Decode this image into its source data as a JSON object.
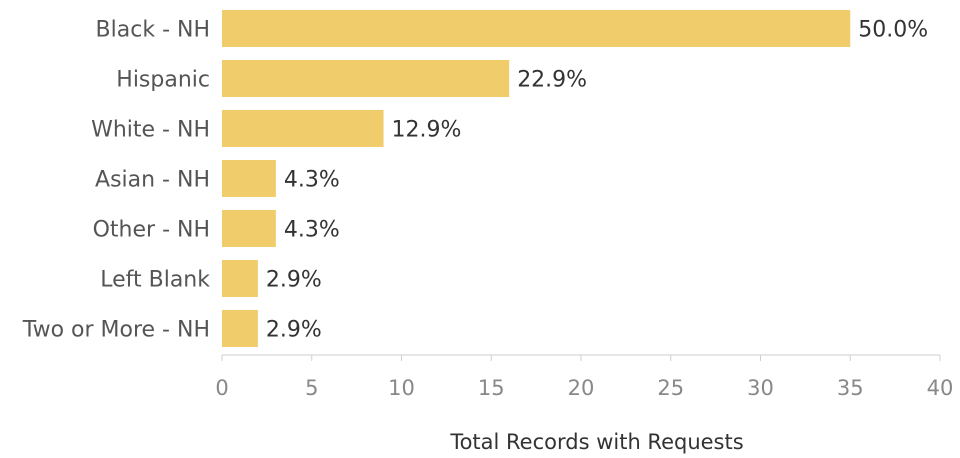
{
  "chart_data": {
    "type": "bar",
    "orientation": "horizontal",
    "categories": [
      "Black - NH",
      "Hispanic",
      "White - NH",
      "Asian - NH",
      "Other - NH",
      "Left Blank",
      "Two or More - NH"
    ],
    "values": [
      35,
      16,
      9,
      3,
      3,
      2,
      2
    ],
    "data_labels": [
      "50.0%",
      "22.9%",
      "12.9%",
      "4.3%",
      "4.3%",
      "2.9%",
      "2.9%"
    ],
    "xlabel": "Total Records with Requests",
    "ylabel": "",
    "title": "",
    "xlim": [
      0,
      40
    ],
    "x_ticks": [
      0,
      5,
      10,
      15,
      20,
      25,
      30,
      35,
      40
    ],
    "grid": false,
    "colors": {
      "bar": "#F0CC6A",
      "axis": "#CFCFCF"
    }
  }
}
